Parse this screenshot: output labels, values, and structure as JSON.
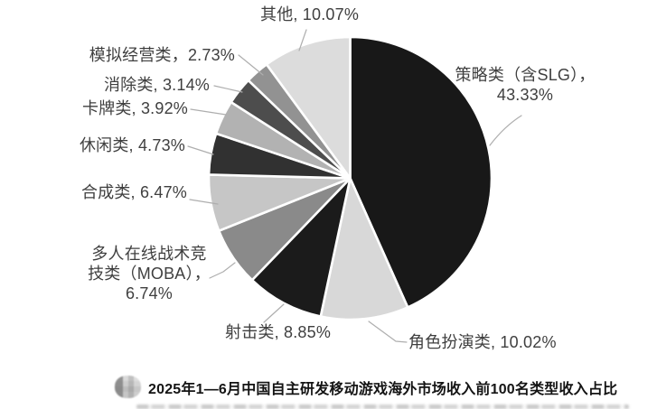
{
  "chart_data": {
    "type": "pie",
    "title": "2025年1—6月中国自主研发移动游戏海外市场收入前100名类型收入占比",
    "unit": "%",
    "start_angle_deg": 0,
    "direction": "clockwise",
    "legend_position": "none",
    "slices": [
      {
        "name": "策略类（含SLG）",
        "value": 43.33,
        "color": "#181818",
        "label": "策略类（含SLG），\n43.33%"
      },
      {
        "name": "角色扮演类",
        "value": 10.02,
        "color": "#d8d8d8",
        "label": "角色扮演类, 10.02%"
      },
      {
        "name": "射击类",
        "value": 8.85,
        "color": "#1b1b1b",
        "label": "射击类, 8.85%"
      },
      {
        "name": "多人在线战术竞技类（MOBA）",
        "value": 6.74,
        "color": "#8a8a8a",
        "label": "多人在线战术竞\n技类（MOBA），\n6.74%"
      },
      {
        "name": "合成类",
        "value": 6.47,
        "color": "#c6c6c6",
        "label": "合成类, 6.47%"
      },
      {
        "name": "休闲类",
        "value": 4.73,
        "color": "#313131",
        "label": "休闲类, 4.73%"
      },
      {
        "name": "卡牌类",
        "value": 3.92,
        "color": "#b2b2b2",
        "label": "卡牌类, 3.92%"
      },
      {
        "name": "消除类",
        "value": 3.14,
        "color": "#4d4d4d",
        "label": "消除类, 3.14%"
      },
      {
        "name": "模拟经营类",
        "value": 2.73,
        "color": "#929292",
        "label": "模拟经营类，2.73%"
      },
      {
        "name": "其他",
        "value": 10.07,
        "color": "#dcdcdc",
        "label": "其他, 10.07%"
      }
    ]
  },
  "caption": "2025年1—6月中国自主研发移动游戏海外市场收入前100名类型收入占比",
  "colors": {
    "background": "#ffffff",
    "slice_border": "#ffffff",
    "leader_line": "#aeaeae",
    "label_text": "#3f3f3f",
    "caption_text": "#141414"
  }
}
